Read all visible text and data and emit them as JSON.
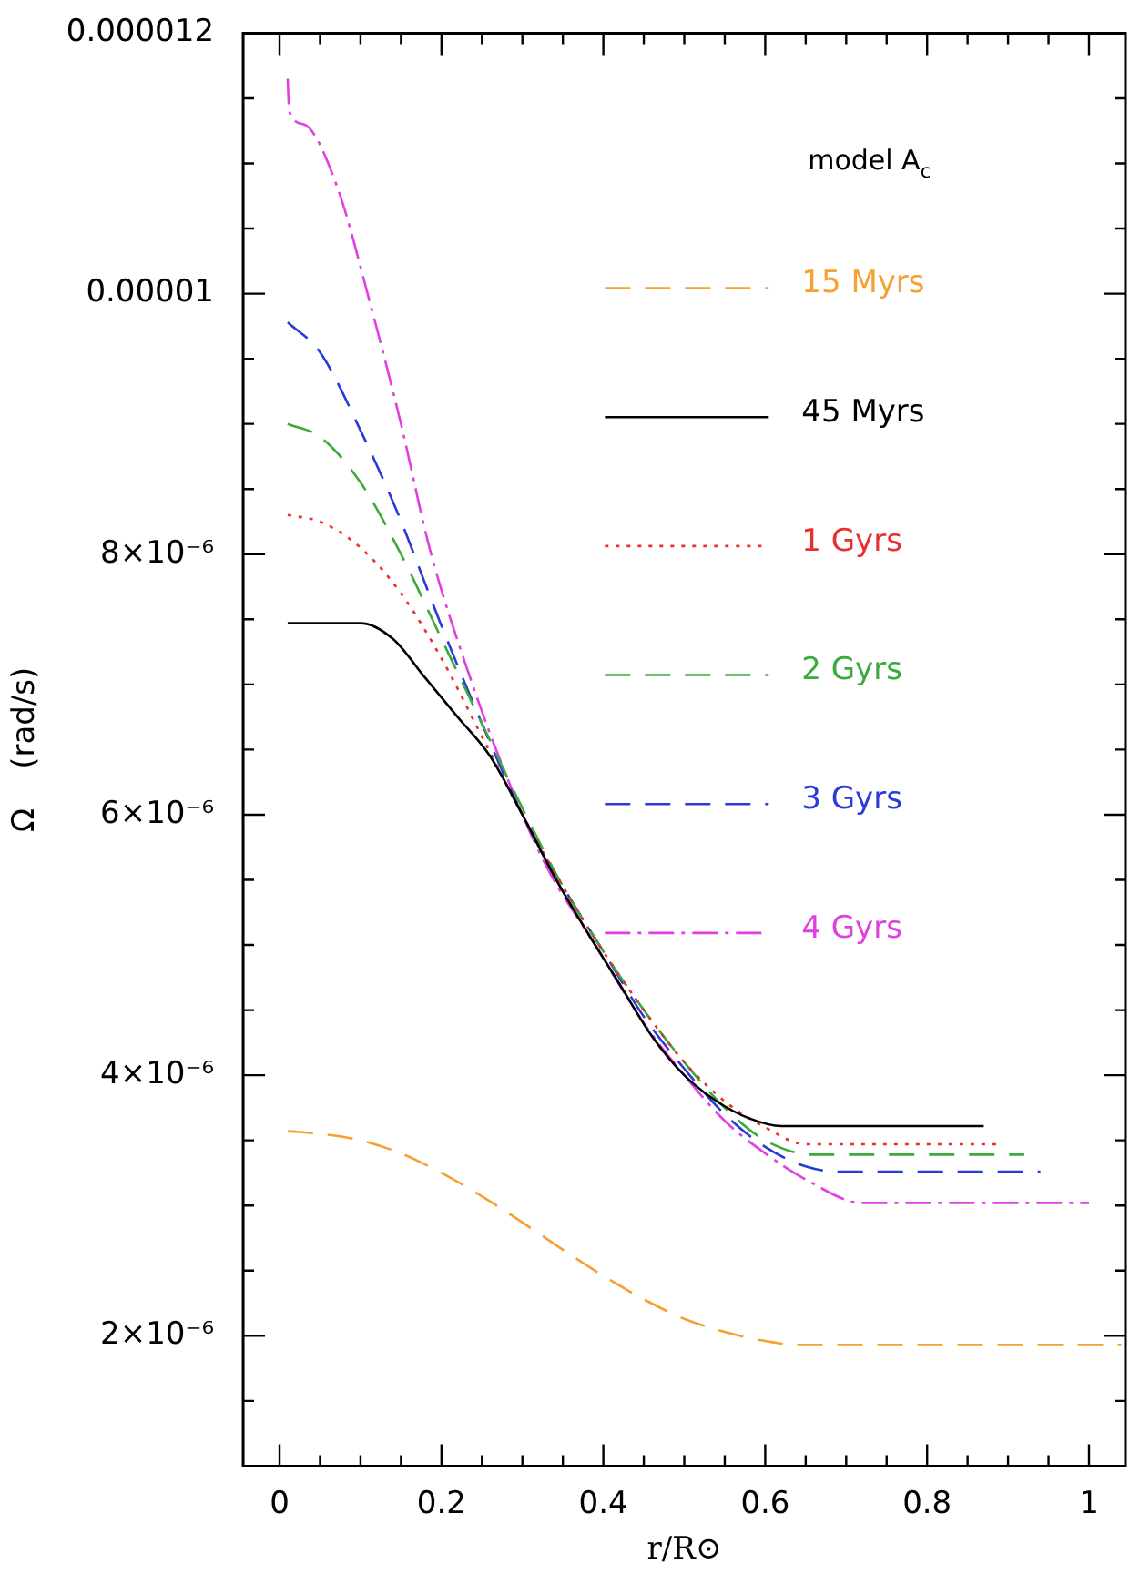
{
  "chart_data": {
    "type": "line",
    "xlabel": "r/R⊙",
    "ylabel": "Ω    (rad/s)",
    "annotations": [
      "model A$_{c}$"
    ],
    "xlim": [
      -0.045,
      1.045
    ],
    "ylim": [
      1e-06,
      1.2e-05
    ],
    "xticks": [
      0,
      {
        "value": 0.05,
        "label": null
      },
      {
        "value": 0.1,
        "label": null
      },
      {
        "value": 0.15,
        "label": null
      },
      0.2,
      {
        "value": 0.25,
        "label": null
      },
      {
        "value": 0.3,
        "label": null
      },
      {
        "value": 0.35,
        "label": null
      },
      0.4,
      {
        "value": 0.45,
        "label": null
      },
      {
        "value": 0.5,
        "label": null
      },
      {
        "value": 0.55,
        "label": null
      },
      0.6,
      {
        "value": 0.65,
        "label": null
      },
      {
        "value": 0.7,
        "label": null
      },
      {
        "value": 0.75,
        "label": null
      },
      0.8,
      {
        "value": 0.85,
        "label": null
      },
      {
        "value": 0.9,
        "label": null
      },
      {
        "value": 0.95,
        "label": null
      },
      1
    ],
    "yticks": [
      {
        "value": 1.5e-06,
        "label": null
      },
      {
        "value": 2e-06,
        "label": "2×10⁻⁶"
      },
      {
        "value": 2.5e-06,
        "label": null
      },
      {
        "value": 3e-06,
        "label": null
      },
      {
        "value": 3.5e-06,
        "label": null
      },
      {
        "value": 4e-06,
        "label": "4×10⁻⁶"
      },
      {
        "value": 4.5e-06,
        "label": null
      },
      {
        "value": 5e-06,
        "label": null
      },
      {
        "value": 5.5e-06,
        "label": null
      },
      {
        "value": 6e-06,
        "label": "6×10⁻⁶"
      },
      {
        "value": 6.5e-06,
        "label": null
      },
      {
        "value": 7e-06,
        "label": null
      },
      {
        "value": 7.5e-06,
        "label": null
      },
      {
        "value": 8e-06,
        "label": "8×10⁻⁶"
      },
      {
        "value": 8.5e-06,
        "label": null
      },
      {
        "value": 9e-06,
        "label": null
      },
      {
        "value": 9.5e-06,
        "label": null
      },
      {
        "value": 1e-05,
        "label": "0.00001"
      },
      {
        "value": 1.05e-05,
        "label": null
      },
      {
        "value": 1.1e-05,
        "label": null
      },
      {
        "value": 1.15e-05,
        "label": null
      },
      {
        "value": 1.2e-05,
        "label": "0.000012"
      }
    ],
    "legend": "top right",
    "grid": false,
    "marker": "none",
    "series": [
      {
        "name": "15 Myrs",
        "color": "#f5a030",
        "line_style": "dashed",
        "x": [
          0.01,
          0.05,
          0.1,
          0.15,
          0.2,
          0.25,
          0.3,
          0.35,
          0.4,
          0.45,
          0.5,
          0.55,
          0.6,
          0.64,
          1.04
        ],
        "values": [
          3.57e-06,
          3.55e-06,
          3.5e-06,
          3.4e-06,
          3.25e-06,
          3.07e-06,
          2.87e-06,
          2.66e-06,
          2.46e-06,
          2.28e-06,
          2.13e-06,
          2.03e-06,
          1.96e-06,
          1.93e-06,
          1.93e-06
        ]
      },
      {
        "name": "45 Myrs",
        "color": "#000000",
        "line_style": "solid",
        "x": [
          0.01,
          0.1,
          0.14,
          0.18,
          0.22,
          0.26,
          0.3,
          0.34,
          0.38,
          0.42,
          0.46,
          0.5,
          0.54,
          0.58,
          0.62,
          0.87
        ],
        "values": [
          7.47e-06,
          7.47e-06,
          7.35e-06,
          7.05e-06,
          6.75e-06,
          6.45e-06,
          6e-06,
          5.52e-06,
          5.1e-06,
          4.7e-06,
          4.3e-06,
          4e-06,
          3.8e-06,
          3.67e-06,
          3.61e-06,
          3.61e-06
        ]
      },
      {
        "name": "1 Gyrs",
        "color": "#e8302c",
        "line_style": "dotted",
        "x": [
          0.01,
          0.05,
          0.1,
          0.15,
          0.2,
          0.25,
          0.3,
          0.35,
          0.4,
          0.45,
          0.5,
          0.55,
          0.6,
          0.65,
          0.89
        ],
        "values": [
          8.3e-06,
          8.25e-06,
          8.05e-06,
          7.7e-06,
          7.2e-06,
          6.6e-06,
          6e-06,
          5.45e-06,
          4.95e-06,
          4.5e-06,
          4.1e-06,
          3.8e-06,
          3.6e-06,
          3.47e-06,
          3.47e-06
        ]
      },
      {
        "name": "2 Gyrs",
        "color": "#3aaa3a",
        "line_style": "dashed",
        "x": [
          0.01,
          0.05,
          0.1,
          0.15,
          0.2,
          0.25,
          0.3,
          0.35,
          0.4,
          0.45,
          0.5,
          0.55,
          0.6,
          0.66,
          0.92
        ],
        "values": [
          9e-06,
          8.9e-06,
          8.55e-06,
          8e-06,
          7.35e-06,
          6.7e-06,
          6.05e-06,
          5.45e-06,
          4.95e-06,
          4.5e-06,
          4.1e-06,
          3.75e-06,
          3.5e-06,
          3.39e-06,
          3.39e-06
        ]
      },
      {
        "name": "3 Gyrs",
        "color": "#2a3ad8",
        "line_style": "dashed",
        "x": [
          0.01,
          0.05,
          0.1,
          0.147,
          0.2,
          0.25,
          0.3,
          0.35,
          0.4,
          0.45,
          0.5,
          0.55,
          0.6,
          0.65,
          0.69,
          0.94
        ],
        "values": [
          9.78e-06,
          9.55e-06,
          8.95e-06,
          8.3e-06,
          7.45e-06,
          6.7e-06,
          6e-06,
          5.45e-06,
          4.95e-06,
          4.45e-06,
          4.05e-06,
          3.7e-06,
          3.45e-06,
          3.3e-06,
          3.26e-06,
          3.26e-06
        ]
      },
      {
        "name": "4 Gyrs",
        "color": "#e040e0",
        "line_style": "dashdot",
        "x": [
          0.01,
          0.012,
          0.03,
          0.07,
          0.113,
          0.15,
          0.186,
          0.235,
          0.28,
          0.33,
          0.39,
          0.45,
          0.5,
          0.55,
          0.6,
          0.65,
          0.72,
          1.0
        ],
        "values": [
          1.165e-05,
          1.14e-05,
          1.13e-05,
          1.084e-05,
          9.9e-06,
          9e-06,
          8.03e-06,
          7.06e-06,
          6.3e-06,
          5.6e-06,
          5e-06,
          4.4e-06,
          4e-06,
          3.65e-06,
          3.4e-06,
          3.2e-06,
          3.02e-06,
          3.02e-06
        ]
      }
    ]
  }
}
